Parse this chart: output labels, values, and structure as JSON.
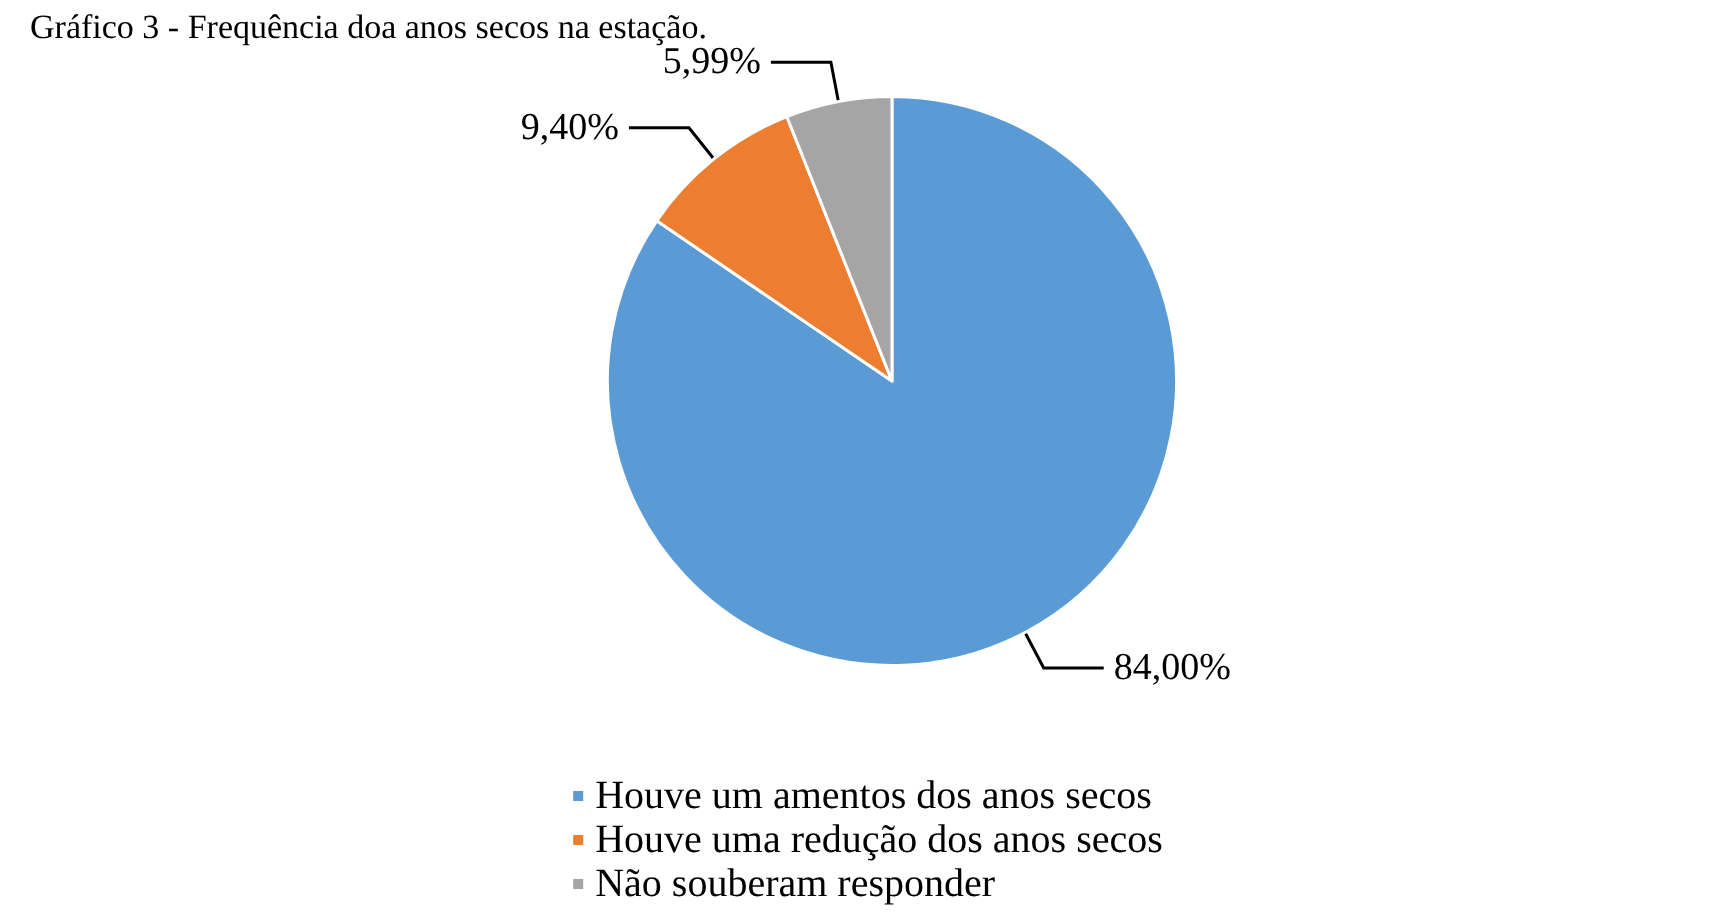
{
  "chart_data": {
    "type": "pie",
    "title": "Gráfico 3 - Frequência doa anos secos na estação.",
    "categories": [
      "Houve um amentos dos anos secos",
      "Houve uma redução dos anos secos",
      "Não souberam responder"
    ],
    "values": [
      84.0,
      9.4,
      5.99
    ],
    "value_labels": [
      "84,00%",
      "9,40%",
      "5,99%"
    ],
    "colors": [
      "#5b9bd5",
      "#ed7d31",
      "#a5a5a5"
    ],
    "legend": "bottom"
  }
}
